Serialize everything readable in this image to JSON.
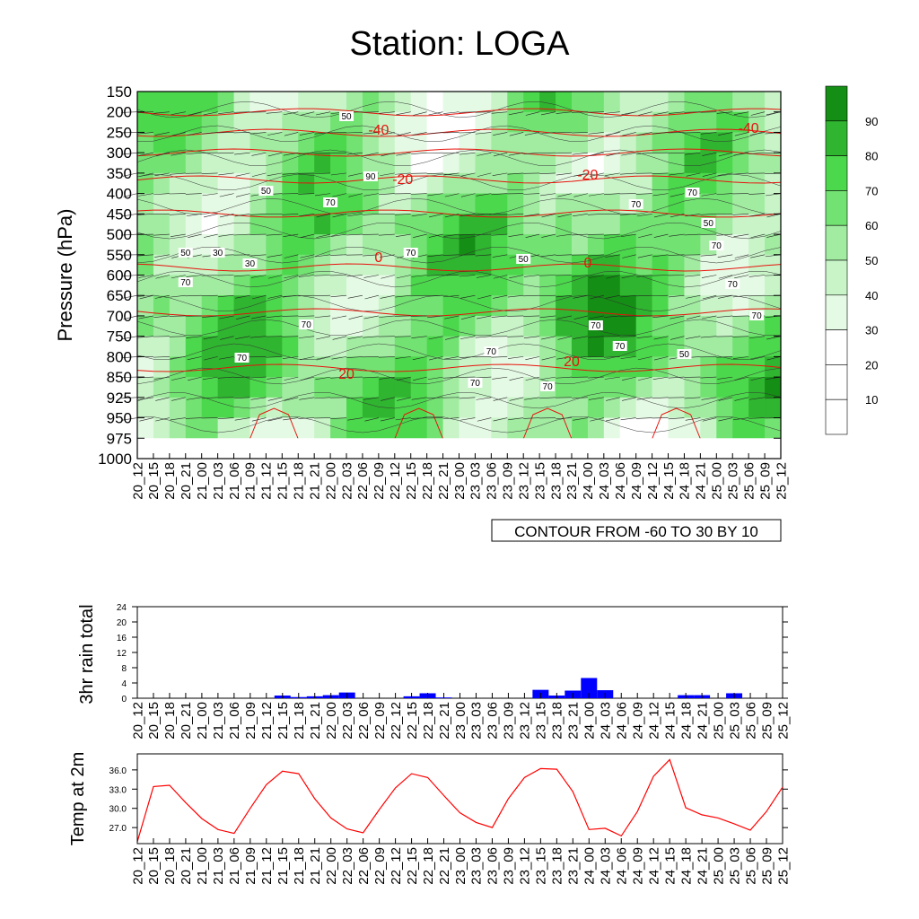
{
  "page": {
    "title": "Station: LOGA"
  },
  "time_labels": [
    "20_12",
    "20_15",
    "20_18",
    "20_21",
    "21_00",
    "21_03",
    "21_06",
    "21_09",
    "21_12",
    "21_15",
    "21_18",
    "21_21",
    "22_00",
    "22_03",
    "22_06",
    "22_09",
    "22_12",
    "22_15",
    "22_18",
    "22_21",
    "23_00",
    "23_03",
    "23_06",
    "23_09",
    "23_12",
    "23_15",
    "23_18",
    "23_21",
    "24_00",
    "24_03",
    "24_06",
    "24_09",
    "24_12",
    "24_15",
    "24_18",
    "24_21",
    "25_00",
    "25_03",
    "25_06",
    "25_09",
    "25_12"
  ],
  "chart_data": [
    {
      "type": "heatmap",
      "title": "Station: LOGA",
      "ylabel": "Pressure (hPa)",
      "y_ticks": [
        150,
        200,
        250,
        300,
        350,
        400,
        450,
        500,
        550,
        600,
        650,
        700,
        750,
        800,
        850,
        925,
        950,
        975,
        1000
      ],
      "note": "CONTOUR FROM -60 TO 30 BY 10",
      "colorbar": {
        "levels": [
          10,
          20,
          30,
          40,
          50,
          60,
          70,
          80,
          90
        ],
        "colors": [
          "#ffffff",
          "#ffffff",
          "#ffffff",
          "#e5fae5",
          "#c8f4c8",
          "#a2eca2",
          "#72e272",
          "#4cd84c",
          "#30b530",
          "#148e14"
        ]
      },
      "temperature_contour_labels": [
        "-40",
        "-40",
        "-20",
        "-20",
        "0",
        "0",
        "20",
        "20"
      ],
      "humidity_contour_labels": [
        "50",
        "50",
        "30",
        "30",
        "50",
        "50",
        "70",
        "70",
        "70",
        "70",
        "90",
        "70",
        "70",
        "70",
        "70",
        "70",
        "70",
        "70",
        "70",
        "50",
        "50",
        "70",
        "70",
        "70"
      ]
    },
    {
      "type": "bar",
      "ylabel": "3hr rain total",
      "ylim": [
        0,
        24
      ],
      "y_ticks": [
        0,
        4,
        8,
        12,
        16,
        20,
        24
      ],
      "color": "#0000ff",
      "values": [
        0,
        0,
        0,
        0,
        0,
        0,
        0,
        0,
        0,
        0.7,
        0.3,
        0.5,
        0.8,
        1.5,
        0,
        0,
        0,
        0.5,
        1.3,
        0.2,
        0,
        0,
        0,
        0,
        0,
        2.2,
        0.7,
        2,
        5.3,
        2.1,
        0,
        0,
        0,
        0,
        0.8,
        0.8,
        0,
        1.3,
        0,
        0,
        0
      ]
    },
    {
      "type": "line",
      "ylabel": "Temp at 2m",
      "ylim": [
        24.5,
        38.5
      ],
      "y_ticks": [
        "27.0",
        "30.0",
        "33.0",
        "36.0"
      ],
      "y_tick_values": [
        27,
        30,
        33,
        36
      ],
      "color": "#ff0000",
      "values": [
        24.8,
        33.4,
        33.6,
        30.9,
        28.4,
        26.7,
        26.1,
        30.0,
        33.7,
        35.8,
        35.4,
        31.5,
        28.5,
        26.8,
        26.2,
        29.8,
        33.2,
        35.4,
        34.8,
        32.0,
        29.3,
        27.8,
        27.0,
        31.5,
        34.8,
        36.2,
        36.1,
        32.6,
        26.7,
        26.9,
        25.7,
        29.5,
        35.0,
        37.6,
        30.1,
        29.0,
        28.5,
        27.6,
        26.6,
        29.5,
        33.3
      ]
    }
  ]
}
